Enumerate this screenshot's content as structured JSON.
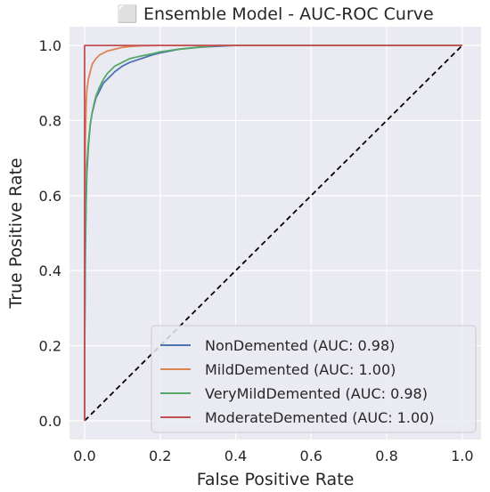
{
  "chart_data": {
    "type": "line",
    "title": "⬜ Ensemble Model - AUC-ROC Curve",
    "xlabel": "False Positive Rate",
    "ylabel": "True Positive Rate",
    "xlim": [
      -0.04,
      1.05
    ],
    "ylim": [
      -0.05,
      1.05
    ],
    "xticks": [
      0.0,
      0.2,
      0.4,
      0.6,
      0.8,
      1.0
    ],
    "yticks": [
      0.0,
      0.2,
      0.4,
      0.6,
      0.8,
      1.0
    ],
    "xtick_labels": [
      "0.0",
      "0.2",
      "0.4",
      "0.6",
      "0.8",
      "1.0"
    ],
    "ytick_labels": [
      "0.0",
      "0.2",
      "0.4",
      "0.6",
      "0.8",
      "1.0"
    ],
    "grid": true,
    "legend_position": "lower-right",
    "series": [
      {
        "name": "NonDemented (AUC: 0.98)",
        "color": "#4c72b0",
        "x": [
          0,
          0,
          0.002,
          0.004,
          0.006,
          0.01,
          0.015,
          0.02,
          0.025,
          0.03,
          0.04,
          0.05,
          0.06,
          0.08,
          0.1,
          0.12,
          0.15,
          0.18,
          0.2,
          0.25,
          0.3,
          0.35,
          0.4,
          1.0
        ],
        "y": [
          0,
          0.17,
          0.45,
          0.58,
          0.66,
          0.73,
          0.79,
          0.82,
          0.84,
          0.86,
          0.88,
          0.9,
          0.91,
          0.93,
          0.945,
          0.955,
          0.965,
          0.975,
          0.98,
          0.99,
          0.995,
          0.998,
          1.0,
          1.0
        ]
      },
      {
        "name": "MildDemented (AUC: 1.00)",
        "color": "#dd8452",
        "x": [
          0,
          0,
          0.002,
          0.004,
          0.006,
          0.01,
          0.015,
          0.02,
          0.03,
          0.04,
          0.05,
          0.06,
          0.08,
          0.1,
          0.12,
          0.15,
          0.2,
          1.0
        ],
        "y": [
          0,
          0.5,
          0.75,
          0.84,
          0.88,
          0.91,
          0.93,
          0.95,
          0.965,
          0.975,
          0.98,
          0.985,
          0.99,
          0.995,
          0.997,
          0.999,
          1.0,
          1.0
        ]
      },
      {
        "name": "VeryMildDemented (AUC: 0.98)",
        "color": "#55a868",
        "x": [
          0,
          0,
          0.002,
          0.004,
          0.006,
          0.01,
          0.015,
          0.02,
          0.025,
          0.03,
          0.04,
          0.05,
          0.06,
          0.08,
          0.1,
          0.12,
          0.15,
          0.18,
          0.2,
          0.25,
          0.3,
          0.35,
          1.0
        ],
        "y": [
          0,
          0.2,
          0.48,
          0.6,
          0.68,
          0.74,
          0.79,
          0.82,
          0.845,
          0.865,
          0.89,
          0.91,
          0.925,
          0.945,
          0.955,
          0.965,
          0.972,
          0.978,
          0.983,
          0.99,
          0.995,
          1.0,
          1.0
        ]
      },
      {
        "name": "ModerateDemented (AUC: 1.00)",
        "color": "#c44e52",
        "x": [
          0,
          0,
          1.0
        ],
        "y": [
          0,
          1.0,
          1.0
        ]
      }
    ],
    "reference_line": {
      "x": [
        0,
        1
      ],
      "y": [
        0,
        1
      ],
      "style": "dashed",
      "color": "#000000"
    }
  }
}
